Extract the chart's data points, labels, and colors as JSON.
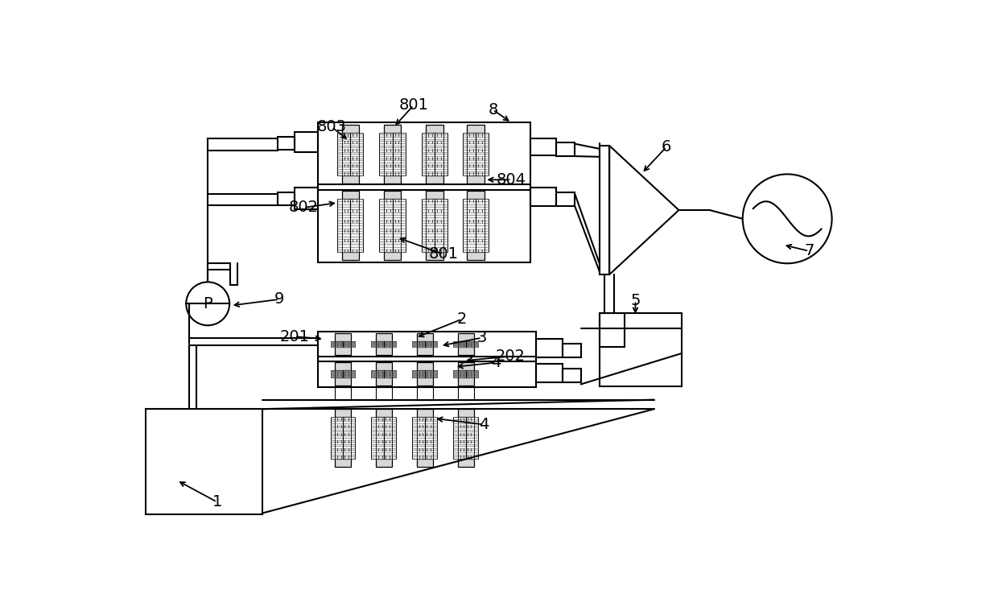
{
  "bg": "#ffffff",
  "lc": "#000000",
  "gray": "#aaaaaa",
  "lgray": "#d8d8d8",
  "fig_w": 12.4,
  "fig_h": 7.38,
  "dpi": 100,
  "iw": 1240,
  "ih": 738
}
